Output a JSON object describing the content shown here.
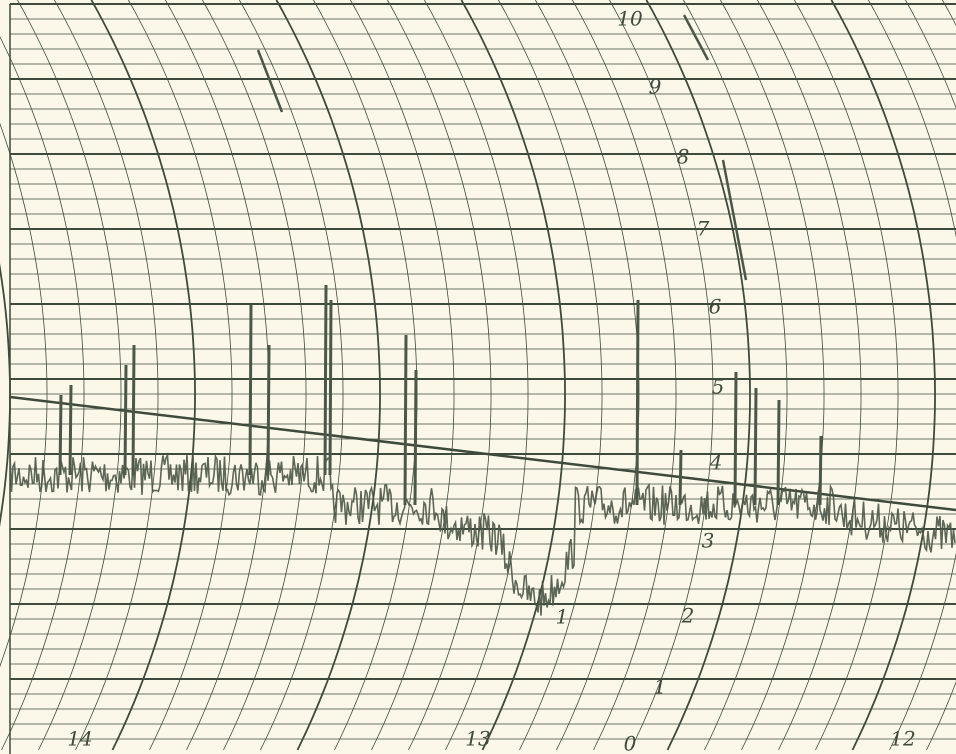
{
  "scale_labels": [
    "10",
    "9",
    "8",
    "7",
    "6",
    "5",
    "4",
    "3",
    "2",
    "1",
    "0"
  ],
  "hour_labels": [
    "14",
    "13",
    "12"
  ],
  "marker_label": "1"
}
